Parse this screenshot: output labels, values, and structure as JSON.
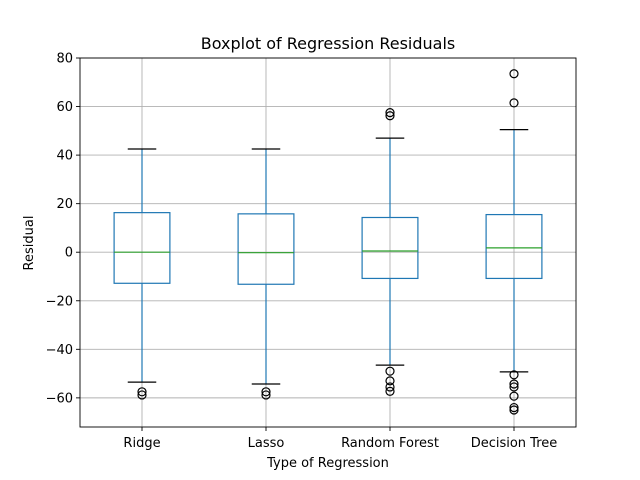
{
  "chart_data": {
    "type": "box",
    "title": "Boxplot of Regression Residuals",
    "xlabel": "Type of Regression",
    "ylabel": "Residual",
    "ylim": [
      -72,
      80
    ],
    "yticks": [
      -60,
      -40,
      -20,
      0,
      20,
      40,
      60,
      80
    ],
    "grid": true,
    "categories": [
      "Ridge",
      "Lasso",
      "Random Forest",
      "Decision Tree"
    ],
    "boxes": [
      {
        "category": "Ridge",
        "whisker_low": -53.5,
        "q1": -12.8,
        "median": 0.0,
        "q3": 16.3,
        "whisker_high": 42.5,
        "outliers": [
          -57.5,
          -58.8
        ]
      },
      {
        "category": "Lasso",
        "whisker_low": -54.3,
        "q1": -13.2,
        "median": -0.2,
        "q3": 15.8,
        "whisker_high": 42.5,
        "outliers": [
          -57.5,
          -58.8
        ]
      },
      {
        "category": "Random Forest",
        "whisker_low": -46.5,
        "q1": -10.8,
        "median": 0.5,
        "q3": 14.3,
        "whisker_high": 47.0,
        "outliers": [
          57.5,
          56.2,
          -49.0,
          -53.0,
          -55.5,
          -57.3
        ]
      },
      {
        "category": "Decision Tree",
        "whisker_low": -49.3,
        "q1": -10.8,
        "median": 1.8,
        "q3": 15.5,
        "whisker_high": 50.5,
        "outliers": [
          73.5,
          61.5,
          -50.5,
          -54.3,
          -55.5,
          -59.3,
          -64.0,
          -65.0
        ]
      }
    ],
    "colors": {
      "box": "#1f77b4",
      "median": "#2ca02c",
      "whisker": "#1f77b4",
      "cap": "#000000",
      "outlier": "#000000",
      "grid": "#b0b0b0"
    }
  }
}
